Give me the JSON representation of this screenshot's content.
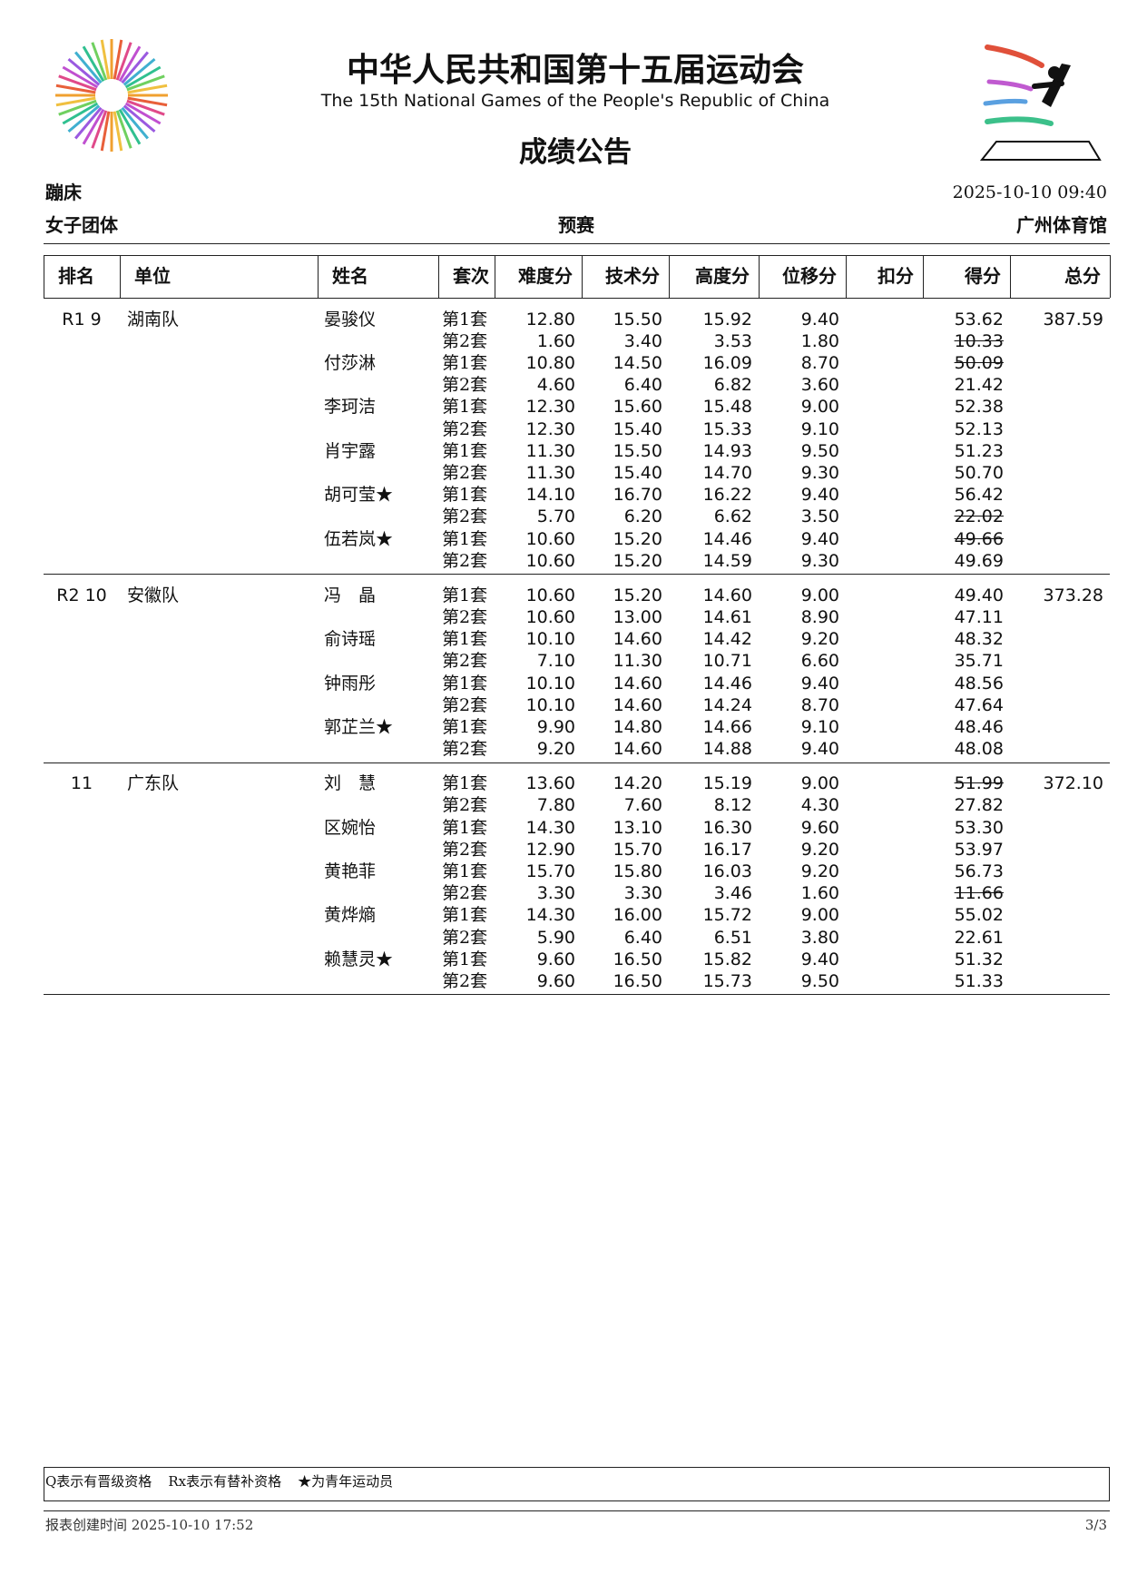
{
  "header": {
    "title_cn": "中华人民共和国第十五届运动会",
    "title_en": "The 15th National Games of the People's Republic of China",
    "subtitle": "成绩公告"
  },
  "meta": {
    "sport": "蹦床",
    "datetime": "2025-10-10 09:40",
    "event": "女子团体",
    "phase": "预赛",
    "venue": "广州体育馆"
  },
  "table": {
    "columns": [
      "排名",
      "单位",
      "姓名",
      "套次",
      "难度分",
      "技术分",
      "高度分",
      "位移分",
      "扣分",
      "得分",
      "总分"
    ],
    "teams": [
      {
        "rank": "R1 9",
        "team": "湖南队",
        "total": "387.59",
        "athletes": [
          {
            "name": "晏骏仪",
            "routines": [
              {
                "set": "第1套",
                "scores": [
                  "12.80",
                  "15.50",
                  "15.92",
                  "9.40"
                ],
                "result": "53.62",
                "struck": false
              },
              {
                "set": "第2套",
                "scores": [
                  "1.60",
                  "3.40",
                  "3.53",
                  "1.80"
                ],
                "result": "10.33",
                "struck": true
              }
            ]
          },
          {
            "name": "付莎淋",
            "routines": [
              {
                "set": "第1套",
                "scores": [
                  "10.80",
                  "14.50",
                  "16.09",
                  "8.70"
                ],
                "result": "50.09",
                "struck": true
              },
              {
                "set": "第2套",
                "scores": [
                  "4.60",
                  "6.40",
                  "6.82",
                  "3.60"
                ],
                "result": "21.42",
                "struck": false
              }
            ]
          },
          {
            "name": "李珂洁",
            "routines": [
              {
                "set": "第1套",
                "scores": [
                  "12.30",
                  "15.60",
                  "15.48",
                  "9.00"
                ],
                "result": "52.38",
                "struck": false
              },
              {
                "set": "第2套",
                "scores": [
                  "12.30",
                  "15.40",
                  "15.33",
                  "9.10"
                ],
                "result": "52.13",
                "struck": false
              }
            ]
          },
          {
            "name": "肖宇露",
            "routines": [
              {
                "set": "第1套",
                "scores": [
                  "11.30",
                  "15.50",
                  "14.93",
                  "9.50"
                ],
                "result": "51.23",
                "struck": false
              },
              {
                "set": "第2套",
                "scores": [
                  "11.30",
                  "15.40",
                  "14.70",
                  "9.30"
                ],
                "result": "50.70",
                "struck": false
              }
            ]
          },
          {
            "name": "胡可莹★",
            "routines": [
              {
                "set": "第1套",
                "scores": [
                  "14.10",
                  "16.70",
                  "16.22",
                  "9.40"
                ],
                "result": "56.42",
                "struck": false
              },
              {
                "set": "第2套",
                "scores": [
                  "5.70",
                  "6.20",
                  "6.62",
                  "3.50"
                ],
                "result": "22.02",
                "struck": true
              }
            ]
          },
          {
            "name": "伍若岚★",
            "routines": [
              {
                "set": "第1套",
                "scores": [
                  "10.60",
                  "15.20",
                  "14.46",
                  "9.40"
                ],
                "result": "49.66",
                "struck": true
              },
              {
                "set": "第2套",
                "scores": [
                  "10.60",
                  "15.20",
                  "14.59",
                  "9.30"
                ],
                "result": "49.69",
                "struck": false
              }
            ]
          }
        ]
      },
      {
        "rank": "R2 10",
        "team": "安徽队",
        "total": "373.28",
        "athletes": [
          {
            "name": "冯　晶",
            "routines": [
              {
                "set": "第1套",
                "scores": [
                  "10.60",
                  "15.20",
                  "14.60",
                  "9.00"
                ],
                "result": "49.40",
                "struck": false
              },
              {
                "set": "第2套",
                "scores": [
                  "10.60",
                  "13.00",
                  "14.61",
                  "8.90"
                ],
                "result": "47.11",
                "struck": false
              }
            ]
          },
          {
            "name": "俞诗瑶",
            "routines": [
              {
                "set": "第1套",
                "scores": [
                  "10.10",
                  "14.60",
                  "14.42",
                  "9.20"
                ],
                "result": "48.32",
                "struck": false
              },
              {
                "set": "第2套",
                "scores": [
                  "7.10",
                  "11.30",
                  "10.71",
                  "6.60"
                ],
                "result": "35.71",
                "struck": false
              }
            ]
          },
          {
            "name": "钟雨彤",
            "routines": [
              {
                "set": "第1套",
                "scores": [
                  "10.10",
                  "14.60",
                  "14.46",
                  "9.40"
                ],
                "result": "48.56",
                "struck": false
              },
              {
                "set": "第2套",
                "scores": [
                  "10.10",
                  "14.60",
                  "14.24",
                  "8.70"
                ],
                "result": "47.64",
                "struck": false
              }
            ]
          },
          {
            "name": "郭芷兰★",
            "routines": [
              {
                "set": "第1套",
                "scores": [
                  "9.90",
                  "14.80",
                  "14.66",
                  "9.10"
                ],
                "result": "48.46",
                "struck": false
              },
              {
                "set": "第2套",
                "scores": [
                  "9.20",
                  "14.60",
                  "14.88",
                  "9.40"
                ],
                "result": "48.08",
                "struck": false
              }
            ]
          }
        ]
      },
      {
        "rank": "11",
        "team": "广东队",
        "total": "372.10",
        "athletes": [
          {
            "name": "刘　慧",
            "routines": [
              {
                "set": "第1套",
                "scores": [
                  "13.60",
                  "14.20",
                  "15.19",
                  "9.00"
                ],
                "result": "51.99",
                "struck": true
              },
              {
                "set": "第2套",
                "scores": [
                  "7.80",
                  "7.60",
                  "8.12",
                  "4.30"
                ],
                "result": "27.82",
                "struck": false
              }
            ]
          },
          {
            "name": "区婉怡",
            "routines": [
              {
                "set": "第1套",
                "scores": [
                  "14.30",
                  "13.10",
                  "16.30",
                  "9.60"
                ],
                "result": "53.30",
                "struck": false
              },
              {
                "set": "第2套",
                "scores": [
                  "12.90",
                  "15.70",
                  "16.17",
                  "9.20"
                ],
                "result": "53.97",
                "struck": false
              }
            ]
          },
          {
            "name": "黄艳菲",
            "routines": [
              {
                "set": "第1套",
                "scores": [
                  "15.70",
                  "15.80",
                  "16.03",
                  "9.20"
                ],
                "result": "56.73",
                "struck": false
              },
              {
                "set": "第2套",
                "scores": [
                  "3.30",
                  "3.30",
                  "3.46",
                  "1.60"
                ],
                "result": "11.66",
                "struck": true
              }
            ]
          },
          {
            "name": "黄烨熵",
            "routines": [
              {
                "set": "第1套",
                "scores": [
                  "14.30",
                  "16.00",
                  "15.72",
                  "9.00"
                ],
                "result": "55.02",
                "struck": false
              },
              {
                "set": "第2套",
                "scores": [
                  "5.90",
                  "6.40",
                  "6.51",
                  "3.80"
                ],
                "result": "22.61",
                "struck": false
              }
            ]
          },
          {
            "name": "赖慧灵★",
            "routines": [
              {
                "set": "第1套",
                "scores": [
                  "9.60",
                  "16.50",
                  "15.82",
                  "9.40"
                ],
                "result": "51.32",
                "struck": false
              },
              {
                "set": "第2套",
                "scores": [
                  "9.60",
                  "16.50",
                  "15.73",
                  "9.50"
                ],
                "result": "51.33",
                "struck": false
              }
            ]
          }
        ]
      }
    ]
  },
  "legend": [
    "Q表示有晋级资格",
    "Rx表示有替补资格",
    "★为青年运动员"
  ],
  "footer": {
    "created": "报表创建时间 2025-10-10 17:52",
    "page": "3/3"
  }
}
